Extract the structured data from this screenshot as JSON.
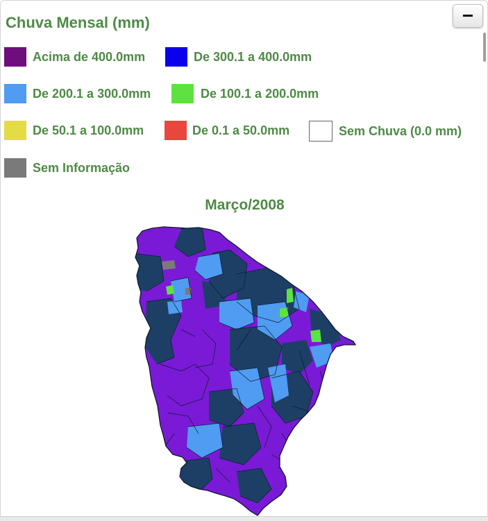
{
  "panel": {
    "title": "Chuva Mensal (mm)",
    "collapse_label": "−"
  },
  "legend": {
    "items": [
      {
        "label": "Acima de 400.0mm",
        "color": "#6e0e7c"
      },
      {
        "label": "De 300.1 a 400.0mm",
        "color": "#0a00ee"
      },
      {
        "label": "De 200.1 a 300.0mm",
        "color": "#4f9cf2"
      },
      {
        "label": "De 100.1 a 200.0mm",
        "color": "#5ee23f"
      },
      {
        "label": "De 50.1 a 100.0mm",
        "color": "#e5dc45"
      },
      {
        "label": "De 0.1 a 50.0mm",
        "color": "#e8473e"
      },
      {
        "label": "Sem Chuva (0.0 mm)",
        "color": "#ffffff"
      },
      {
        "label": "Sem Informação",
        "color": "#7a7a7a"
      }
    ]
  },
  "map": {
    "title": "Março/2008",
    "region_colors": {
      "above_400": "#7a1ad6",
      "from_300_to_400": "#1d3f66",
      "from_200_to_300": "#4f9cf2",
      "from_100_to_200": "#5ee23f",
      "no_information": "#7a7a7a",
      "border": "#0b1a2a"
    }
  }
}
